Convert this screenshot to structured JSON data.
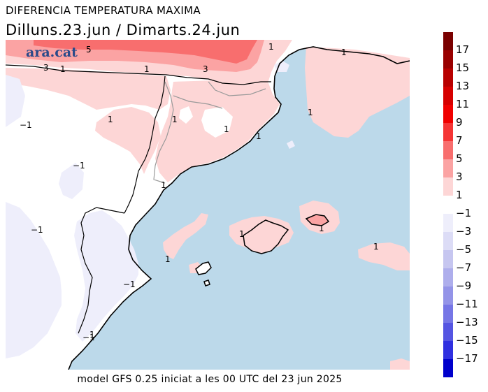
{
  "title": "DIFERENCIA TEMPERATURA MAXIMA",
  "subtitle": "Dilluns.23.jun  /  Dimarts.24.jun",
  "footer": "model GFS 0.25 iniciat a les 00 UTC del 23 jun 2025",
  "logo": "ara.cat",
  "colors": {
    "sea": "#bcd9ea",
    "land": "#ffffff",
    "pos1": "#fdd6d6",
    "pos3": "#fba3a3",
    "pos5": "#f86e6e",
    "pos7": "#f53535",
    "neg1": "#eeeefb",
    "neg3": "#dcdcf6"
  },
  "legend": {
    "positive": [
      {
        "label": "17",
        "color": "#7a0000"
      },
      {
        "label": "15",
        "color": "#990000"
      },
      {
        "label": "13",
        "color": "#b80000"
      },
      {
        "label": "11",
        "color": "#d60000"
      },
      {
        "label": "9",
        "color": "#f00000"
      },
      {
        "label": "7",
        "color": "#f53535"
      },
      {
        "label": "5",
        "color": "#f86e6e"
      },
      {
        "label": "3",
        "color": "#fba3a3"
      },
      {
        "label": "1",
        "color": "#fdd6d6"
      }
    ],
    "negative": [
      {
        "label": "−1",
        "color": "#eeeefb"
      },
      {
        "label": "−3",
        "color": "#dcdcf6"
      },
      {
        "label": "−5",
        "color": "#c6c6f0"
      },
      {
        "label": "−7",
        "color": "#aeaeec"
      },
      {
        "label": "−9",
        "color": "#9494e8"
      },
      {
        "label": "−11",
        "color": "#7676e6"
      },
      {
        "label": "−13",
        "color": "#5555e2"
      },
      {
        "label": "−15",
        "color": "#3030e0"
      },
      {
        "label": "−17",
        "color": "#0000cc"
      }
    ]
  },
  "contour_labels": {
    "c1": "5",
    "c2": "1",
    "c3": "3",
    "c4": "1",
    "c5": "1",
    "c6": "3",
    "c7": "1",
    "c8": "1",
    "c9": "1",
    "c10": "1",
    "c11": "1",
    "c12": "1",
    "c13": "1",
    "c14": "1",
    "c15": "1",
    "c16": "1",
    "c17": "1",
    "c18": "1",
    "c19": "−1",
    "c20": "−1",
    "c21": "−1",
    "c22": "−1",
    "c23": "−1"
  }
}
